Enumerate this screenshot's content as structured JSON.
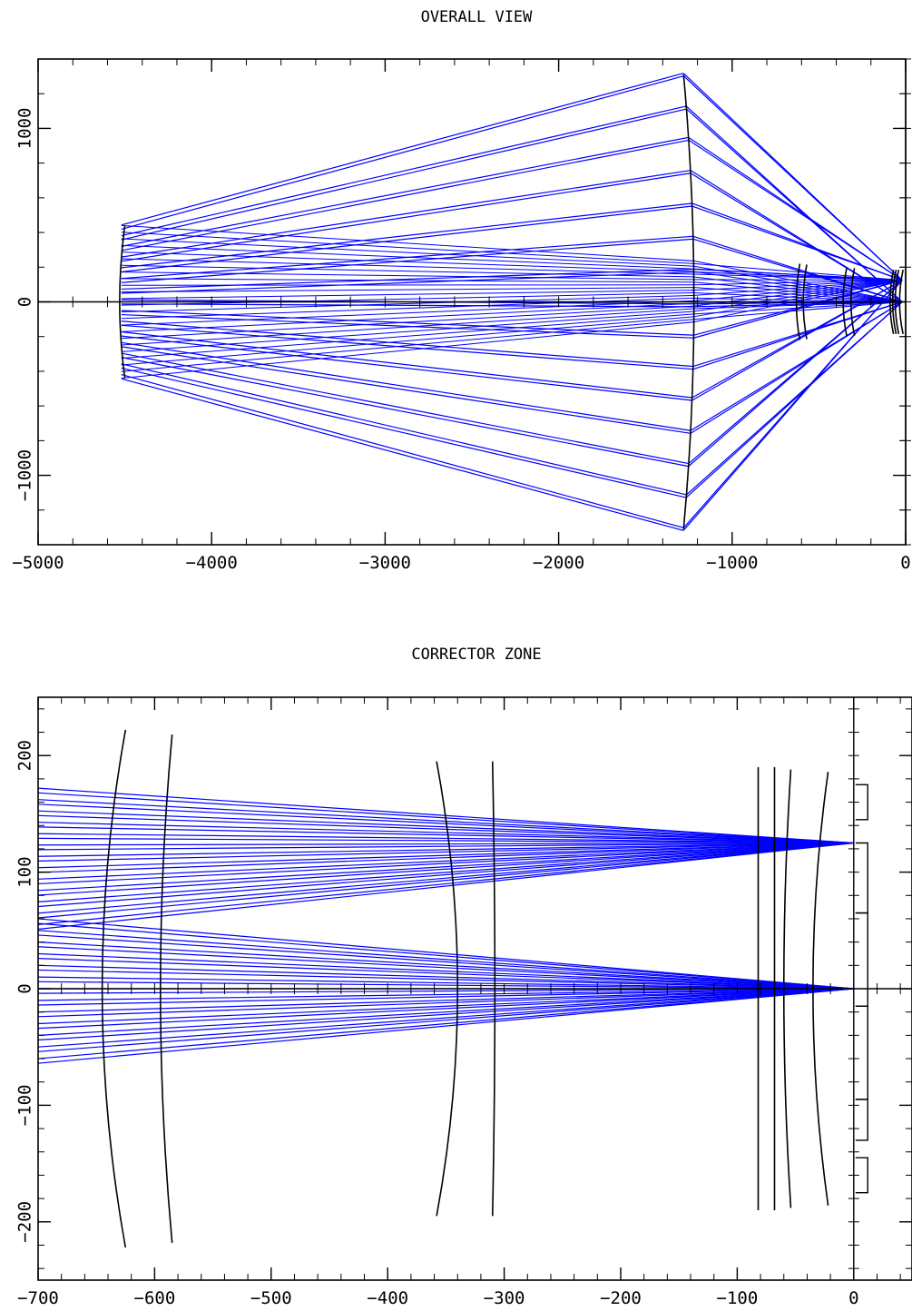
{
  "chart_data": [
    {
      "type": "line",
      "title": "OVERALL VIEW",
      "xlim": [
        -5000,
        0
      ],
      "ylim": [
        -1400,
        1400
      ],
      "x_ticks": [
        -5000,
        -4000,
        -3000,
        -2000,
        -1000,
        0
      ],
      "y_ticks": [
        -1000,
        0,
        1000
      ],
      "x_tick_labels": [
        "−5000",
        "−4000",
        "−3000",
        "−2000",
        "−1000",
        "0"
      ],
      "y_tick_labels": [
        "−1000",
        "0",
        "1000"
      ],
      "colors": {
        "rays": "#0000ff",
        "surfaces": "#000000"
      },
      "source_surface": {
        "x": -4520,
        "half_height": 440
      },
      "mirror": {
        "x_center": -1220,
        "half_height": 1310
      },
      "mirror_beam_heights": [
        1310,
        1120,
        940,
        750,
        560,
        370,
        180,
        -20,
        -200,
        -380,
        -560,
        -750,
        -940,
        -1120,
        -1310
      ],
      "focus_points": [
        [
          0,
          125
        ],
        [
          0,
          0
        ]
      ],
      "lenses": [
        {
          "x": -620,
          "half_height": 220
        },
        {
          "x": -580,
          "half_height": 215
        },
        {
          "x": -350,
          "half_height": 195
        },
        {
          "x": -305,
          "half_height": 195
        },
        {
          "x": -80,
          "half_height": 185
        },
        {
          "x": -65,
          "half_height": 185
        },
        {
          "x": -50,
          "half_height": 185
        },
        {
          "x": -25,
          "half_height": 185
        }
      ]
    },
    {
      "type": "line",
      "title": "CORRECTOR ZONE",
      "xlim": [
        -700,
        50
      ],
      "ylim": [
        -250,
        250
      ],
      "x_ticks": [
        -700,
        -600,
        -500,
        -400,
        -300,
        -200,
        -100,
        0
      ],
      "y_ticks": [
        -200,
        -100,
        0,
        100,
        200
      ],
      "x_tick_labels": [
        "−700",
        "−600",
        "−500",
        "−400",
        "−300",
        "−200",
        "−100",
        "0"
      ],
      "y_tick_labels": [
        "−200",
        "−100",
        "0",
        "100",
        "200"
      ],
      "colors": {
        "rays": "#0000ff",
        "surfaces": "#000000"
      },
      "lenses": [
        {
          "x_center": -645,
          "x_edge": -625,
          "half_height": 222
        },
        {
          "x_center": -595,
          "x_edge": -585,
          "half_height": 218
        },
        {
          "x_center": -340,
          "x_edge": -358,
          "half_height": 195
        },
        {
          "x_center": -308,
          "x_edge": -310,
          "half_height": 195
        },
        {
          "x_center": -82,
          "x_edge": -82,
          "half_height": 190
        },
        {
          "x_center": -68,
          "x_edge": -68,
          "half_height": 190
        },
        {
          "x_center": -60,
          "x_edge": -54,
          "half_height": 188
        },
        {
          "x_center": -35,
          "x_edge": -22,
          "half_height": 186
        }
      ],
      "detectors": [
        {
          "y_from": 175,
          "y_to": 145
        },
        {
          "y_from": 125,
          "y_to": 65
        },
        {
          "y_from": 65,
          "y_to": -15
        },
        {
          "y_from": -15,
          "y_to": -95
        },
        {
          "y_from": -95,
          "y_to": -130
        },
        {
          "y_from": -145,
          "y_to": -175
        }
      ],
      "upper_bundle": {
        "focus": [
          0,
          125
        ],
        "y_at_x_min_from": 172,
        "y_at_x_min_to": 55,
        "count": 13
      },
      "lower_bundle": {
        "focus": [
          0,
          0
        ],
        "y_at_x_min_from": 60,
        "y_at_x_min_to": -60,
        "count": 13
      }
    }
  ]
}
